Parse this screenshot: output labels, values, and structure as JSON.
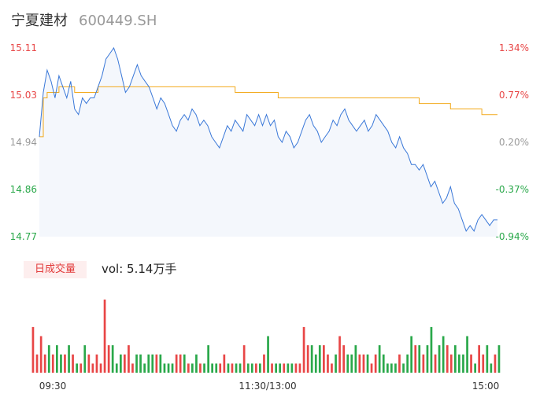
{
  "header": {
    "name": "宁夏建材",
    "code": "600449.SH"
  },
  "volume_panel": {
    "tag": "日成交量",
    "vol_label": "vol: 5.14万手"
  },
  "colors": {
    "price_line": "#3a78d8",
    "avg_line": "#f2a91a",
    "up": "#e84646",
    "down": "#2aa84a",
    "flat": "#999999",
    "area": "#f4f7fc"
  },
  "chart_data": {
    "type": "line",
    "title": "",
    "y_ticks_left": [
      "15.11",
      "15.03",
      "14.94",
      "14.86",
      "14.77"
    ],
    "y_ticks_right": [
      "1.34%",
      "0.77%",
      "0.20%",
      "-0.37%",
      "-0.94%"
    ],
    "x_ticks": [
      "09:30",
      "11:30/13:00",
      "15:00"
    ],
    "ylim": [
      14.77,
      15.11
    ],
    "series": [
      {
        "values": [
          14.95,
          15.03,
          15.07,
          15.05,
          15.02,
          15.06,
          15.04,
          15.02,
          15.05,
          15.0,
          14.99,
          15.02,
          15.01,
          15.02,
          15.02,
          15.04,
          15.06,
          15.09,
          15.1,
          15.11,
          15.09,
          15.06,
          15.03,
          15.04,
          15.06,
          15.08,
          15.06,
          15.05,
          15.04,
          15.02,
          15.0,
          15.02,
          15.01,
          14.99,
          14.97,
          14.96,
          14.98,
          14.99,
          14.98,
          15.0,
          14.99,
          14.97,
          14.98,
          14.97,
          14.95,
          14.94,
          14.93,
          14.95,
          14.97,
          14.96,
          14.98,
          14.97,
          14.96,
          14.99,
          14.98,
          14.97,
          14.99,
          14.97,
          14.99,
          14.97,
          14.98,
          14.95,
          14.94,
          14.96,
          14.95,
          14.93,
          14.94,
          14.96,
          14.98,
          14.99,
          14.97,
          14.96,
          14.94,
          14.95,
          14.96,
          14.98,
          14.97,
          14.99,
          15.0,
          14.98,
          14.97,
          14.96,
          14.97,
          14.98,
          14.96,
          14.97,
          14.99,
          14.98,
          14.97,
          14.96,
          14.94,
          14.93,
          14.95,
          14.93,
          14.92,
          14.9,
          14.9,
          14.89,
          14.9,
          14.88,
          14.86,
          14.87,
          14.85,
          14.83,
          14.84,
          14.86,
          14.83,
          14.82,
          14.8,
          14.78,
          14.79,
          14.78,
          14.8,
          14.81,
          14.8,
          14.79,
          14.8,
          14.8
        ]
      }
    ],
    "avg_series": [
      14.95,
      15.02,
      15.03,
      15.03,
      15.03,
      15.04,
      15.04,
      15.04,
      15.04,
      15.03,
      15.03,
      15.03,
      15.03,
      15.03,
      15.03,
      15.04,
      15.04,
      15.04,
      15.04,
      15.04,
      15.04,
      15.04,
      15.04,
      15.04,
      15.04,
      15.04,
      15.04,
      15.04,
      15.04,
      15.04,
      15.04,
      15.04,
      15.04,
      15.04,
      15.04,
      15.04,
      15.04,
      15.04,
      15.04,
      15.04,
      15.04,
      15.04,
      15.04,
      15.04,
      15.04,
      15.04,
      15.04,
      15.04,
      15.04,
      15.04,
      15.03,
      15.03,
      15.03,
      15.03,
      15.03,
      15.03,
      15.03,
      15.03,
      15.03,
      15.03,
      15.03,
      15.02,
      15.02,
      15.02,
      15.02,
      15.02,
      15.02,
      15.02,
      15.02,
      15.02,
      15.02,
      15.02,
      15.02,
      15.02,
      15.02,
      15.02,
      15.02,
      15.02,
      15.02,
      15.02,
      15.02,
      15.02,
      15.02,
      15.02,
      15.02,
      15.02,
      15.02,
      15.02,
      15.02,
      15.02,
      15.02,
      15.02,
      15.02,
      15.02,
      15.02,
      15.02,
      15.02,
      15.01,
      15.01,
      15.01,
      15.01,
      15.01,
      15.01,
      15.01,
      15.01,
      15.0,
      15.0,
      15.0,
      15.0,
      15.0,
      15.0,
      15.0,
      15.0,
      14.99,
      14.99,
      14.99,
      14.99,
      14.99
    ],
    "volume": [
      5,
      2,
      4,
      2,
      3,
      2,
      3,
      2,
      2,
      3,
      2,
      1,
      1,
      3,
      2,
      1,
      2,
      1,
      8,
      3,
      3,
      1,
      2,
      2,
      3,
      1,
      2,
      2,
      1,
      2,
      2,
      2,
      2,
      1,
      1,
      1,
      2,
      2,
      2,
      1,
      1,
      2,
      1,
      1,
      3,
      1,
      1,
      1,
      2,
      1,
      1,
      1,
      1,
      3,
      1,
      1,
      1,
      1,
      2,
      4,
      1,
      1,
      1,
      1,
      1,
      1,
      1,
      1,
      5,
      3,
      3,
      2,
      3,
      3,
      2,
      1,
      2,
      4,
      3,
      2,
      2,
      3,
      2,
      2,
      2,
      1,
      2,
      3,
      2,
      1,
      1,
      1,
      2,
      1,
      2,
      4,
      3,
      3,
      2,
      3,
      5,
      2,
      3,
      4,
      3,
      2,
      3,
      2,
      2,
      4,
      2,
      1,
      3,
      2,
      3,
      1,
      2,
      3
    ],
    "volume_dir": [
      "u",
      "u",
      "u",
      "u",
      "d",
      "u",
      "d",
      "d",
      "u",
      "d",
      "u",
      "d",
      "u",
      "d",
      "u",
      "u",
      "u",
      "u",
      "u",
      "u",
      "d",
      "d",
      "d",
      "u",
      "u",
      "u",
      "d",
      "d",
      "d",
      "d",
      "d",
      "u",
      "d",
      "d",
      "d",
      "d",
      "u",
      "u",
      "d",
      "u",
      "d",
      "d",
      "u",
      "d",
      "d",
      "d",
      "d",
      "u",
      "u",
      "d",
      "u",
      "d",
      "d",
      "u",
      "d",
      "d",
      "u",
      "d",
      "u",
      "d",
      "u",
      "d",
      "d",
      "u",
      "d",
      "d",
      "u",
      "u",
      "u",
      "u",
      "d",
      "d",
      "d",
      "u",
      "u",
      "u",
      "d",
      "u",
      "u",
      "d",
      "d",
      "d",
      "u",
      "u",
      "d",
      "u",
      "u",
      "d",
      "d",
      "d",
      "d",
      "d",
      "u",
      "d",
      "d",
      "d",
      "u",
      "d",
      "u",
      "d",
      "d",
      "u",
      "d",
      "d",
      "u",
      "u",
      "d",
      "d",
      "d",
      "d",
      "u",
      "d",
      "u",
      "u",
      "d",
      "d",
      "u",
      "d"
    ]
  }
}
